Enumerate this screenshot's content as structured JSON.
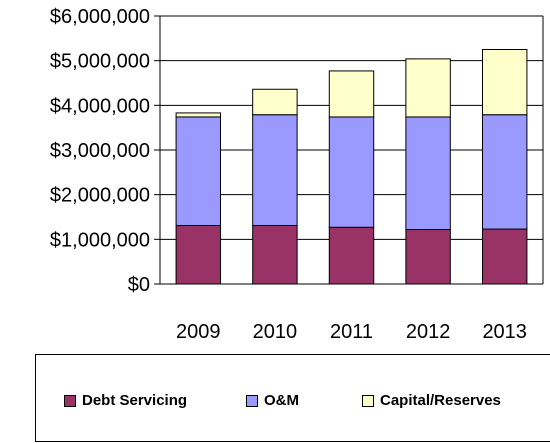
{
  "chart_data": {
    "type": "bar",
    "stacked": true,
    "categories": [
      "2009",
      "2010",
      "2011",
      "2012",
      "2013"
    ],
    "series": [
      {
        "name": "Debt Servicing",
        "color": "#993366",
        "values": [
          1310000,
          1310000,
          1270000,
          1220000,
          1230000
        ]
      },
      {
        "name": "O&M",
        "color": "#9999FF",
        "values": [
          2430000,
          2480000,
          2470000,
          2520000,
          2560000
        ]
      },
      {
        "name": "Capital/Reserves",
        "color": "#FFFFCC",
        "values": [
          90000,
          570000,
          1030000,
          1300000,
          1460000
        ]
      }
    ],
    "ylim": [
      0,
      6000000
    ],
    "yticks": [
      "$0",
      "$1,000,000",
      "$2,000,000",
      "$3,000,000",
      "$4,000,000",
      "$5,000,000",
      "$6,000,000"
    ],
    "grid": true,
    "legend_position": "bottom"
  }
}
